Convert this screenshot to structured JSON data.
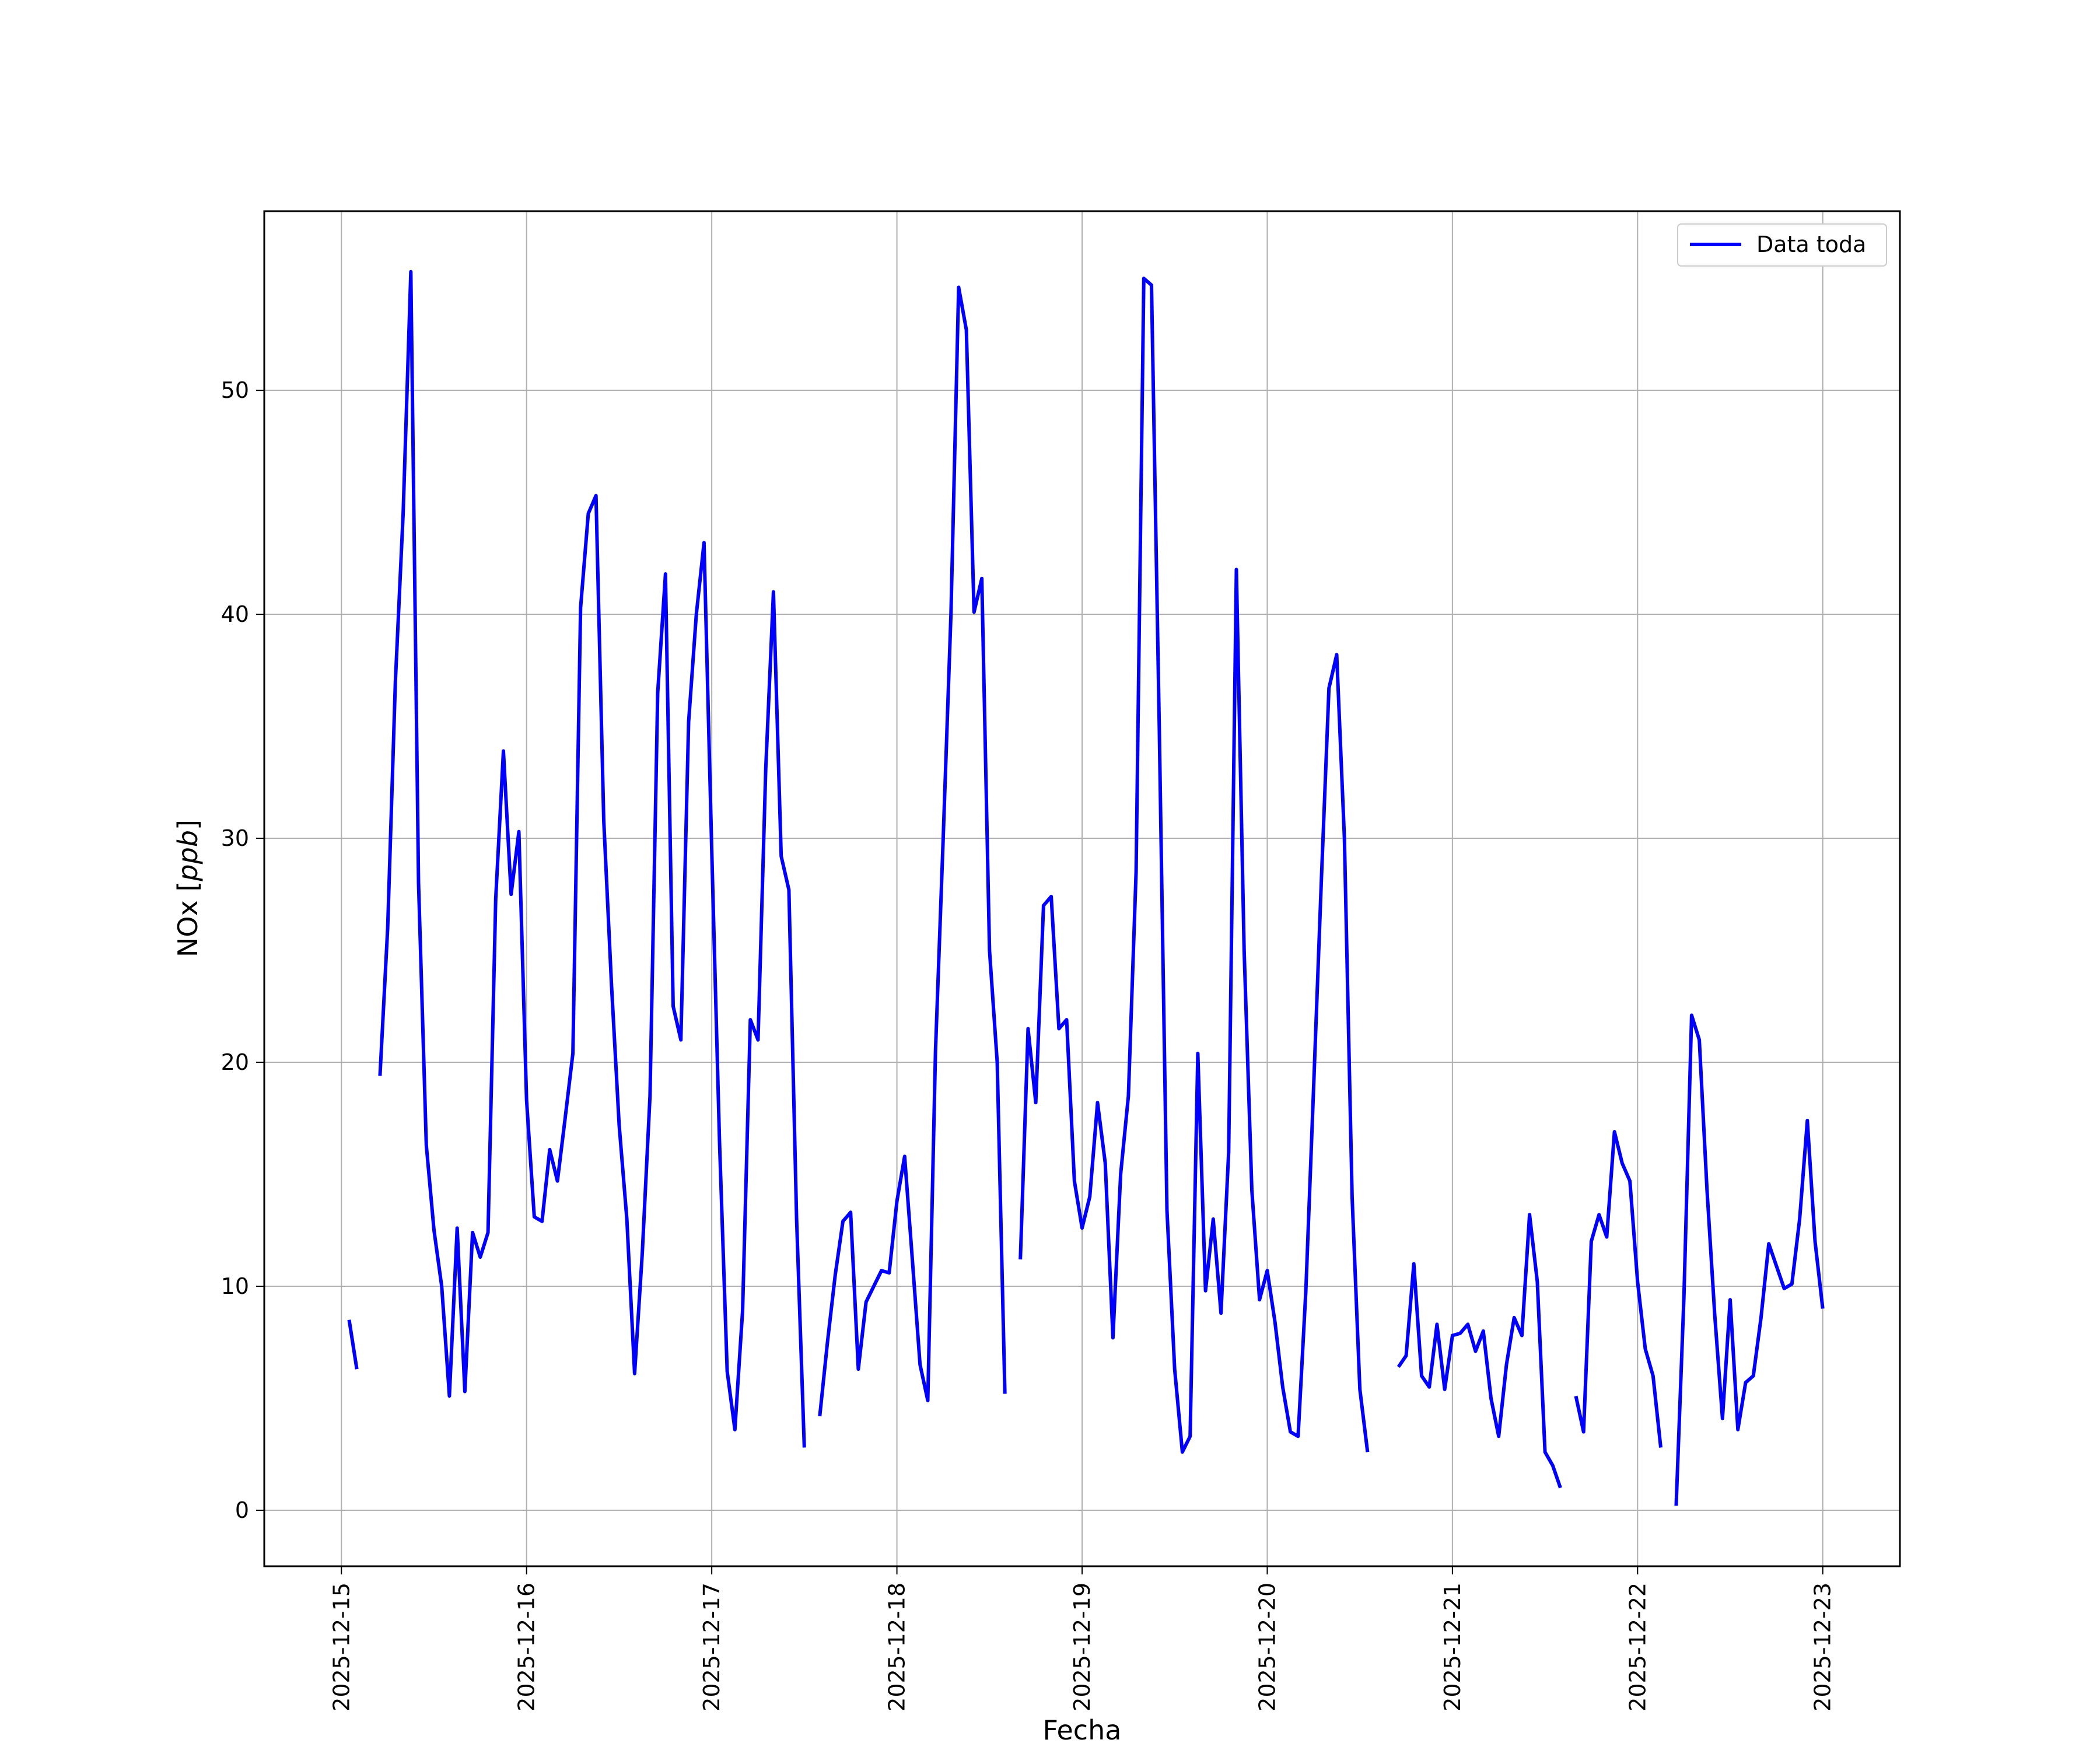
{
  "chart_data": {
    "type": "line",
    "title": "",
    "xlabel": "Fecha",
    "ylabel_text": "NOx [",
    "ylabel_unit": "ppb",
    "ylabel_close": "]",
    "xlim": [
      "2025-12-14T14:00",
      "2025-12-23T10:00"
    ],
    "ylim": [
      -2.5,
      58
    ],
    "x_ticks": [
      "2025-12-15",
      "2025-12-16",
      "2025-12-17",
      "2025-12-18",
      "2025-12-19",
      "2025-12-20",
      "2025-12-21",
      "2025-12-22",
      "2025-12-23"
    ],
    "y_ticks": [
      0,
      10,
      20,
      30,
      40,
      50
    ],
    "y_tick_labels": [
      "0",
      "10",
      "20",
      "30",
      "40",
      "50"
    ],
    "grid": true,
    "legend_position": "top-right",
    "series": [
      {
        "name": "Data toda",
        "color": "#0000ff",
        "segments": [
          [
            [
              "2025-12-15T01:00",
              8.5
            ],
            [
              "2025-12-15T02:00",
              6.3
            ]
          ],
          [
            [
              "2025-12-15T05:00",
              19.4
            ],
            [
              "2025-12-15T06:00",
              26.0
            ],
            [
              "2025-12-15T07:00",
              37.0
            ],
            [
              "2025-12-15T08:00",
              44.5
            ],
            [
              "2025-12-15T09:00",
              55.3
            ],
            [
              "2025-12-15T10:00",
              28.0
            ],
            [
              "2025-12-15T11:00",
              16.3
            ],
            [
              "2025-12-15T12:00",
              12.5
            ],
            [
              "2025-12-15T13:00",
              10.0
            ],
            [
              "2025-12-15T14:00",
              5.1
            ],
            [
              "2025-12-15T15:00",
              12.6
            ],
            [
              "2025-12-15T16:00",
              5.3
            ],
            [
              "2025-12-15T17:00",
              12.4
            ],
            [
              "2025-12-15T18:00",
              11.3
            ],
            [
              "2025-12-15T19:00",
              12.4
            ],
            [
              "2025-12-15T20:00",
              27.3
            ],
            [
              "2025-12-15T21:00",
              33.9
            ],
            [
              "2025-12-15T22:00",
              27.5
            ],
            [
              "2025-12-15T23:00",
              30.3
            ],
            [
              "2025-12-16T00:00",
              18.3
            ],
            [
              "2025-12-16T01:00",
              13.1
            ],
            [
              "2025-12-16T02:00",
              12.9
            ],
            [
              "2025-12-16T03:00",
              16.1
            ],
            [
              "2025-12-16T04:00",
              14.7
            ],
            [
              "2025-12-16T05:00",
              17.5
            ],
            [
              "2025-12-16T06:00",
              20.4
            ],
            [
              "2025-12-16T07:00",
              40.3
            ],
            [
              "2025-12-16T08:00",
              44.5
            ],
            [
              "2025-12-16T09:00",
              45.3
            ],
            [
              "2025-12-16T10:00",
              30.8
            ],
            [
              "2025-12-16T11:00",
              23.5
            ],
            [
              "2025-12-16T12:00",
              17.2
            ],
            [
              "2025-12-16T13:00",
              13.0
            ],
            [
              "2025-12-16T14:00",
              6.1
            ],
            [
              "2025-12-16T15:00",
              11.5
            ],
            [
              "2025-12-16T16:00",
              18.5
            ],
            [
              "2025-12-16T17:00",
              36.5
            ],
            [
              "2025-12-16T18:00",
              41.8
            ],
            [
              "2025-12-16T19:00",
              22.5
            ],
            [
              "2025-12-16T20:00",
              21.0
            ],
            [
              "2025-12-16T21:00",
              35.2
            ],
            [
              "2025-12-16T22:00",
              40.0
            ],
            [
              "2025-12-16T23:00",
              43.2
            ],
            [
              "2025-12-17T00:00",
              29.5
            ],
            [
              "2025-12-17T01:00",
              16.5
            ],
            [
              "2025-12-17T02:00",
              6.2
            ],
            [
              "2025-12-17T03:00",
              3.6
            ],
            [
              "2025-12-17T04:00",
              8.9
            ],
            [
              "2025-12-17T05:00",
              21.9
            ],
            [
              "2025-12-17T06:00",
              21.0
            ],
            [
              "2025-12-17T07:00",
              33.1
            ],
            [
              "2025-12-17T08:00",
              41.0
            ],
            [
              "2025-12-17T09:00",
              29.2
            ],
            [
              "2025-12-17T10:00",
              27.7
            ],
            [
              "2025-12-17T11:00",
              13.0
            ],
            [
              "2025-12-17T12:00",
              2.8
            ]
          ],
          [
            [
              "2025-12-17T14:00",
              4.2
            ],
            [
              "2025-12-17T15:00",
              7.5
            ],
            [
              "2025-12-17T16:00",
              10.5
            ],
            [
              "2025-12-17T17:00",
              12.9
            ],
            [
              "2025-12-17T18:00",
              13.3
            ],
            [
              "2025-12-17T19:00",
              6.3
            ],
            [
              "2025-12-17T20:00",
              9.3
            ],
            [
              "2025-12-17T21:00",
              10.0
            ],
            [
              "2025-12-17T22:00",
              10.7
            ],
            [
              "2025-12-17T23:00",
              10.6
            ],
            [
              "2025-12-18T00:00",
              13.8
            ],
            [
              "2025-12-18T01:00",
              15.8
            ],
            [
              "2025-12-18T02:00",
              11.2
            ],
            [
              "2025-12-18T03:00",
              6.5
            ],
            [
              "2025-12-18T04:00",
              4.9
            ],
            [
              "2025-12-18T05:00",
              20.5
            ],
            [
              "2025-12-18T06:00",
              30.0
            ],
            [
              "2025-12-18T07:00",
              40.0
            ],
            [
              "2025-12-18T08:00",
              54.6
            ],
            [
              "2025-12-18T09:00",
              52.7
            ],
            [
              "2025-12-18T10:00",
              40.1
            ],
            [
              "2025-12-18T11:00",
              41.6
            ],
            [
              "2025-12-18T12:00",
              25.0
            ],
            [
              "2025-12-18T13:00",
              20.0
            ],
            [
              "2025-12-18T14:00",
              5.2
            ]
          ],
          [
            [
              "2025-12-18T16:00",
              11.2
            ],
            [
              "2025-12-18T17:00",
              21.5
            ],
            [
              "2025-12-18T18:00",
              18.2
            ],
            [
              "2025-12-18T19:00",
              27.0
            ],
            [
              "2025-12-18T20:00",
              27.4
            ],
            [
              "2025-12-18T21:00",
              21.5
            ],
            [
              "2025-12-18T22:00",
              21.9
            ],
            [
              "2025-12-18T23:00",
              14.7
            ],
            [
              "2025-12-19T00:00",
              12.6
            ],
            [
              "2025-12-19T01:00",
              14.0
            ],
            [
              "2025-12-19T02:00",
              18.2
            ],
            [
              "2025-12-19T03:00",
              15.5
            ],
            [
              "2025-12-19T04:00",
              7.7
            ],
            [
              "2025-12-19T05:00",
              15.0
            ],
            [
              "2025-12-19T06:00",
              18.5
            ],
            [
              "2025-12-19T07:00",
              28.5
            ],
            [
              "2025-12-19T08:00",
              55.0
            ],
            [
              "2025-12-19T09:00",
              54.7
            ],
            [
              "2025-12-19T10:00",
              35.0
            ],
            [
              "2025-12-19T11:00",
              13.4
            ],
            [
              "2025-12-19T12:00",
              6.3
            ],
            [
              "2025-12-19T13:00",
              2.6
            ],
            [
              "2025-12-19T14:00",
              3.3
            ],
            [
              "2025-12-19T15:00",
              20.4
            ],
            [
              "2025-12-19T16:00",
              9.8
            ],
            [
              "2025-12-19T17:00",
              13.0
            ],
            [
              "2025-12-19T18:00",
              8.8
            ],
            [
              "2025-12-19T19:00",
              16.0
            ],
            [
              "2025-12-19T20:00",
              42.0
            ],
            [
              "2025-12-19T21:00",
              25.0
            ],
            [
              "2025-12-19T22:00",
              14.3
            ],
            [
              "2025-12-19T23:00",
              9.4
            ],
            [
              "2025-12-20T00:00",
              10.7
            ],
            [
              "2025-12-20T01:00",
              8.4
            ],
            [
              "2025-12-20T02:00",
              5.5
            ],
            [
              "2025-12-20T03:00",
              3.5
            ],
            [
              "2025-12-20T04:00",
              3.3
            ],
            [
              "2025-12-20T05:00",
              9.8
            ],
            [
              "2025-12-20T06:00",
              18.8
            ],
            [
              "2025-12-20T07:00",
              28.0
            ],
            [
              "2025-12-20T08:00",
              36.7
            ],
            [
              "2025-12-20T09:00",
              38.2
            ],
            [
              "2025-12-20T10:00",
              30.0
            ],
            [
              "2025-12-20T11:00",
              14.0
            ],
            [
              "2025-12-20T12:00",
              5.4
            ],
            [
              "2025-12-20T13:00",
              2.6
            ]
          ],
          [
            [
              "2025-12-20T17:00",
              6.4
            ],
            [
              "2025-12-20T18:00",
              6.9
            ],
            [
              "2025-12-20T19:00",
              11.0
            ],
            [
              "2025-12-20T20:00",
              6.0
            ],
            [
              "2025-12-20T21:00",
              5.5
            ],
            [
              "2025-12-20T22:00",
              8.3
            ],
            [
              "2025-12-20T23:00",
              5.4
            ],
            [
              "2025-12-21T00:00",
              7.8
            ],
            [
              "2025-12-21T01:00",
              7.9
            ],
            [
              "2025-12-21T02:00",
              8.3
            ],
            [
              "2025-12-21T03:00",
              7.1
            ],
            [
              "2025-12-21T04:00",
              8.0
            ],
            [
              "2025-12-21T05:00",
              5.0
            ],
            [
              "2025-12-21T06:00",
              3.3
            ],
            [
              "2025-12-21T07:00",
              6.5
            ],
            [
              "2025-12-21T08:00",
              8.6
            ],
            [
              "2025-12-21T09:00",
              7.8
            ],
            [
              "2025-12-21T10:00",
              13.2
            ],
            [
              "2025-12-21T11:00",
              10.2
            ],
            [
              "2025-12-21T12:00",
              2.6
            ],
            [
              "2025-12-21T13:00",
              2.0
            ],
            [
              "2025-12-21T14:00",
              1.0
            ]
          ],
          [
            [
              "2025-12-21T16:00",
              5.1
            ],
            [
              "2025-12-21T17:00",
              3.5
            ],
            [
              "2025-12-21T18:00",
              12.0
            ],
            [
              "2025-12-21T19:00",
              13.2
            ],
            [
              "2025-12-21T20:00",
              12.2
            ],
            [
              "2025-12-21T21:00",
              16.9
            ],
            [
              "2025-12-21T22:00",
              15.5
            ],
            [
              "2025-12-21T23:00",
              14.7
            ],
            [
              "2025-12-22T00:00",
              10.2
            ],
            [
              "2025-12-22T01:00",
              7.2
            ],
            [
              "2025-12-22T02:00",
              6.0
            ],
            [
              "2025-12-22T03:00",
              2.8
            ]
          ],
          [
            [
              "2025-12-22T05:00",
              0.2
            ],
            [
              "2025-12-22T06:00",
              9.5
            ],
            [
              "2025-12-22T07:00",
              22.1
            ],
            [
              "2025-12-22T08:00",
              21.0
            ],
            [
              "2025-12-22T09:00",
              14.3
            ],
            [
              "2025-12-22T10:00",
              8.7
            ],
            [
              "2025-12-22T11:00",
              4.1
            ],
            [
              "2025-12-22T12:00",
              9.4
            ],
            [
              "2025-12-22T13:00",
              3.6
            ],
            [
              "2025-12-22T14:00",
              5.7
            ],
            [
              "2025-12-22T15:00",
              6.0
            ],
            [
              "2025-12-22T16:00",
              8.6
            ],
            [
              "2025-12-22T17:00",
              11.9
            ],
            [
              "2025-12-22T18:00",
              10.9
            ],
            [
              "2025-12-22T19:00",
              9.9
            ],
            [
              "2025-12-22T20:00",
              10.1
            ],
            [
              "2025-12-22T21:00",
              13.0
            ],
            [
              "2025-12-22T22:00",
              17.4
            ],
            [
              "2025-12-22T23:00",
              12.0
            ],
            [
              "2025-12-23T00:00",
              9.0
            ]
          ]
        ]
      }
    ]
  }
}
